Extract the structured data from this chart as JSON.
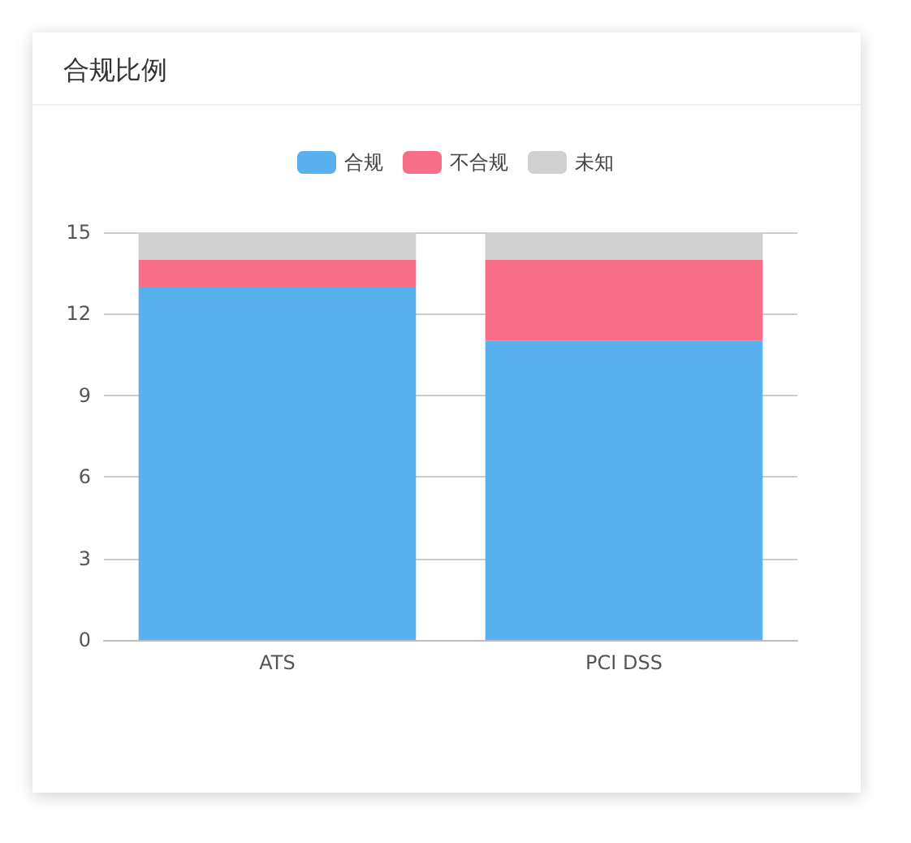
{
  "chart_data": {
    "type": "bar",
    "title": "合规比例",
    "categories": [
      "ATS",
      "PCI DSS"
    ],
    "stacked": true,
    "series": [
      {
        "name": "合规",
        "color": "#58b0ee",
        "values": [
          13,
          11
        ]
      },
      {
        "name": "不合规",
        "color": "#f96e87",
        "values": [
          1,
          3
        ]
      },
      {
        "name": "未知",
        "color": "#d0d0d0",
        "values": [
          1,
          1
        ]
      }
    ],
    "ylim": [
      0,
      15
    ],
    "yticks": [
      0,
      3,
      6,
      9,
      12,
      15
    ],
    "grid": "y",
    "legend": "top"
  }
}
